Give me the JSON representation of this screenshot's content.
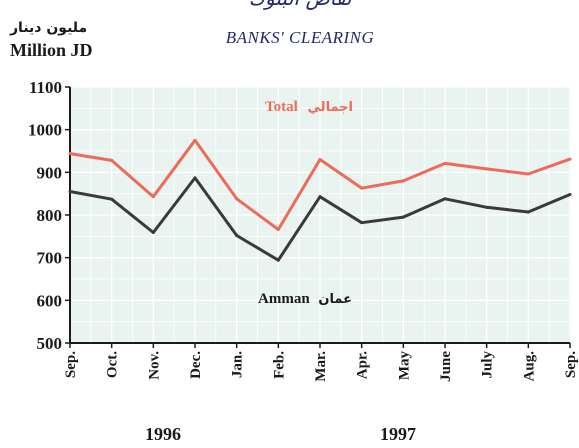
{
  "header": {
    "title_ar": "تقاص البنوك",
    "title_en": "BANKS' CLEARING",
    "unit_ar": "مليون دينار",
    "unit_en": "Million JD"
  },
  "years": [
    "1996",
    "1997"
  ],
  "colors": {
    "total": "#ee6b5a",
    "amman": "#3a3a3a",
    "plot_bg": "#e9f3f0",
    "grid": "#ffffff"
  },
  "chart_data": {
    "type": "line",
    "title": "BANKS' CLEARING",
    "ylabel": "Million JD",
    "ylim": [
      500,
      1100
    ],
    "yticks": [
      500,
      600,
      700,
      800,
      900,
      1000,
      1100
    ],
    "grid": true,
    "categories": [
      "Sep.",
      "Oct.",
      "Nov.",
      "Dec.",
      "Jan.",
      "Feb.",
      "Mar.",
      "Apr.",
      "May",
      "June",
      "July",
      "Aug.",
      "Sep."
    ],
    "series": [
      {
        "name": "Total",
        "name_ar": "اجمالي",
        "values": [
          944,
          928,
          843,
          975,
          838,
          766,
          930,
          863,
          880,
          921,
          908,
          896,
          931
        ]
      },
      {
        "name": "Amman",
        "name_ar": "عمان",
        "values": [
          855,
          837,
          759,
          887,
          752,
          694,
          843,
          782,
          795,
          838,
          818,
          807,
          848
        ]
      }
    ]
  }
}
